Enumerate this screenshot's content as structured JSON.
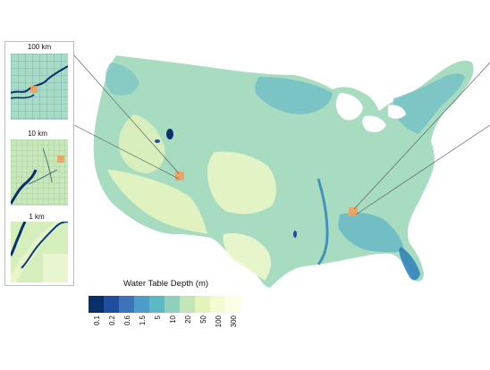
{
  "legend": {
    "title": "Water Table Depth (m)",
    "ticks": [
      "0.1",
      "0.2",
      "0.6",
      "1.5",
      "5",
      "10",
      "20",
      "50",
      "100",
      "300"
    ],
    "colors": [
      "#08306b",
      "#1f4e9e",
      "#3b75b8",
      "#4b9cc6",
      "#5bb8c4",
      "#8fd0bd",
      "#c2e6b5",
      "#e3f3b9",
      "#f5fbd0",
      "#fdfde6"
    ]
  },
  "insets": {
    "panel_1_label": "100 km",
    "panel_2_label": "10 km",
    "panel_3_label": "1 km"
  },
  "palette": {
    "base_land": "#a7dcc0",
    "wet": "#6cbcc8",
    "deep_wet": "#2c7fb8",
    "dry": "#e6f4bf",
    "very_dry": "#f7fbd6",
    "highlight": "#f0a060"
  }
}
